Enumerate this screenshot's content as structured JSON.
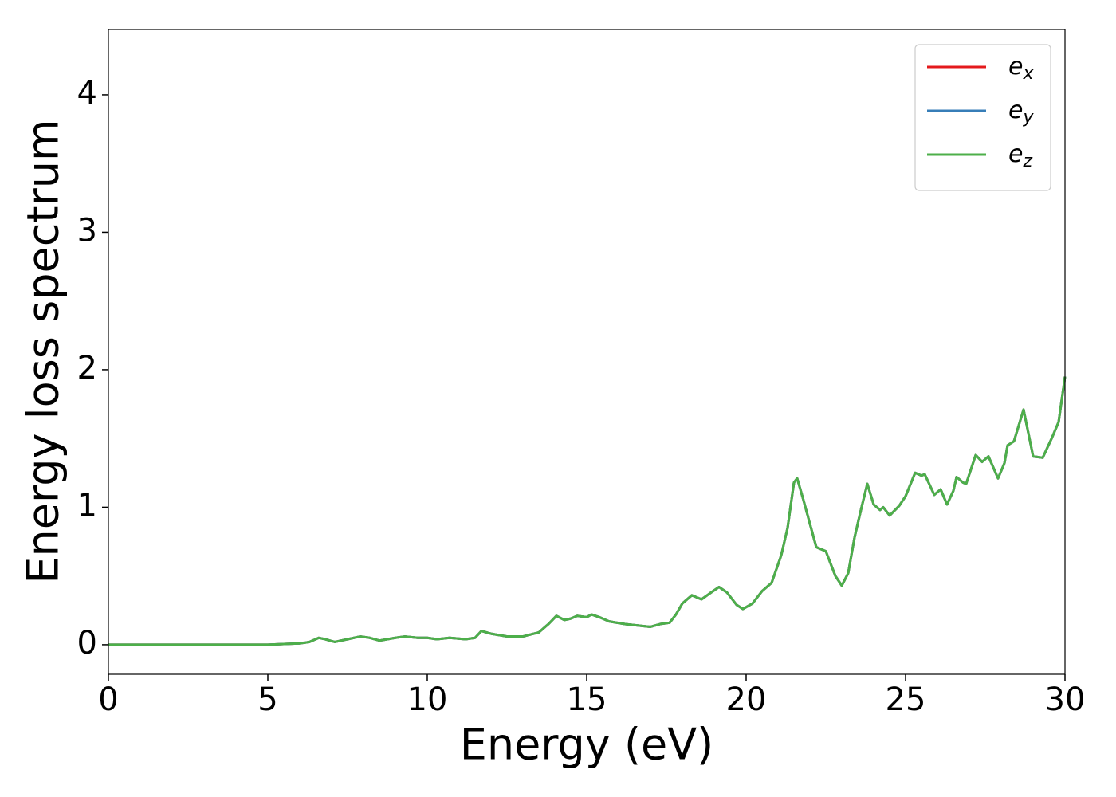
{
  "chart_data": {
    "type": "line",
    "xlabel": "Energy (eV)",
    "ylabel": "Energy loss spectrum",
    "xlim": [
      0,
      30
    ],
    "ylim": [
      -0.215,
      4.475
    ],
    "xticks": [
      0,
      5,
      10,
      15,
      20,
      25,
      30
    ],
    "yticks": [
      0,
      1,
      2,
      3,
      4
    ],
    "legend": "upper right",
    "x": [
      0,
      1,
      2,
      3,
      4,
      5,
      5.5,
      6,
      6.3,
      6.6,
      6.8,
      7.1,
      7.5,
      7.9,
      8.2,
      8.5,
      9,
      9.3,
      9.7,
      10,
      10.3,
      10.7,
      11.2,
      11.5,
      11.7,
      12,
      12.5,
      13,
      13.5,
      13.8,
      14.05,
      14.3,
      14.5,
      14.7,
      15,
      15.15,
      15.4,
      15.7,
      16.2,
      16.6,
      17,
      17.3,
      17.6,
      17.8,
      18,
      18.3,
      18.6,
      18.9,
      19.15,
      19.4,
      19.7,
      19.9,
      20.2,
      20.5,
      20.8,
      21.1,
      21.3,
      21.5,
      21.6,
      21.8,
      22,
      22.2,
      22.5,
      22.8,
      23,
      23.2,
      23.4,
      23.6,
      23.8,
      24,
      24.2,
      24.3,
      24.5,
      24.8,
      25,
      25.3,
      25.5,
      25.6,
      25.9,
      26.1,
      26.3,
      26.5,
      26.6,
      26.8,
      26.9,
      27.2,
      27.4,
      27.6,
      27.9,
      28.1,
      28.2,
      28.4,
      28.7,
      29,
      29.3,
      29.6,
      29.8,
      30
    ],
    "series": [
      {
        "name": "ex",
        "color": "#e41a1c",
        "values": [
          0,
          0,
          0,
          0,
          0,
          0,
          0.005,
          0.01,
          0.02,
          0.05,
          0.04,
          0.02,
          0.04,
          0.06,
          0.05,
          0.03,
          0.05,
          0.06,
          0.05,
          0.05,
          0.04,
          0.05,
          0.04,
          0.05,
          0.1,
          0.08,
          0.06,
          0.06,
          0.09,
          0.15,
          0.21,
          0.18,
          0.19,
          0.21,
          0.2,
          0.22,
          0.2,
          0.17,
          0.15,
          0.14,
          0.13,
          0.15,
          0.16,
          0.22,
          0.3,
          0.36,
          0.33,
          0.38,
          0.42,
          0.38,
          0.29,
          0.26,
          0.3,
          0.39,
          0.45,
          0.65,
          0.85,
          1.18,
          1.21,
          1.05,
          0.88,
          0.71,
          0.68,
          0.5,
          0.43,
          0.52,
          0.78,
          0.98,
          1.17,
          1.02,
          0.98,
          1.0,
          0.94,
          1.01,
          1.08,
          1.25,
          1.23,
          1.24,
          1.09,
          1.13,
          1.02,
          1.12,
          1.22,
          1.18,
          1.17,
          1.38,
          1.33,
          1.37,
          1.21,
          1.32,
          1.45,
          1.48,
          1.71,
          1.37,
          1.36,
          1.51,
          1.62,
          1.95
        ]
      },
      {
        "name": "ey",
        "color": "#377eb8",
        "values": [
          0,
          0,
          0,
          0,
          0,
          0,
          0.005,
          0.01,
          0.02,
          0.05,
          0.04,
          0.02,
          0.04,
          0.06,
          0.05,
          0.03,
          0.05,
          0.06,
          0.05,
          0.05,
          0.04,
          0.05,
          0.04,
          0.05,
          0.1,
          0.08,
          0.06,
          0.06,
          0.09,
          0.15,
          0.21,
          0.18,
          0.19,
          0.21,
          0.2,
          0.22,
          0.2,
          0.17,
          0.15,
          0.14,
          0.13,
          0.15,
          0.16,
          0.22,
          0.3,
          0.36,
          0.33,
          0.38,
          0.42,
          0.38,
          0.29,
          0.26,
          0.3,
          0.39,
          0.45,
          0.65,
          0.85,
          1.18,
          1.21,
          1.05,
          0.88,
          0.71,
          0.68,
          0.5,
          0.43,
          0.52,
          0.78,
          0.98,
          1.17,
          1.02,
          0.98,
          1.0,
          0.94,
          1.01,
          1.08,
          1.25,
          1.23,
          1.24,
          1.09,
          1.13,
          1.02,
          1.12,
          1.22,
          1.18,
          1.17,
          1.38,
          1.33,
          1.37,
          1.21,
          1.32,
          1.45,
          1.48,
          1.71,
          1.37,
          1.36,
          1.51,
          1.62,
          1.95
        ]
      },
      {
        "name": "ez",
        "color": "#4daf4a",
        "values": [
          0,
          0,
          0,
          0,
          0,
          0,
          0.005,
          0.01,
          0.02,
          0.05,
          0.04,
          0.02,
          0.04,
          0.06,
          0.05,
          0.03,
          0.05,
          0.06,
          0.05,
          0.05,
          0.04,
          0.05,
          0.04,
          0.05,
          0.1,
          0.08,
          0.06,
          0.06,
          0.09,
          0.15,
          0.21,
          0.18,
          0.19,
          0.21,
          0.2,
          0.22,
          0.2,
          0.17,
          0.15,
          0.14,
          0.13,
          0.15,
          0.16,
          0.22,
          0.3,
          0.36,
          0.33,
          0.38,
          0.42,
          0.38,
          0.29,
          0.26,
          0.3,
          0.39,
          0.45,
          0.65,
          0.85,
          1.18,
          1.21,
          1.05,
          0.88,
          0.71,
          0.68,
          0.5,
          0.43,
          0.52,
          0.78,
          0.98,
          1.17,
          1.02,
          0.98,
          1.0,
          0.94,
          1.01,
          1.08,
          1.25,
          1.23,
          1.24,
          1.09,
          1.13,
          1.02,
          1.12,
          1.22,
          1.18,
          1.17,
          1.38,
          1.33,
          1.37,
          1.21,
          1.32,
          1.45,
          1.48,
          1.71,
          1.37,
          1.36,
          1.51,
          1.62,
          1.95
        ]
      }
    ]
  }
}
